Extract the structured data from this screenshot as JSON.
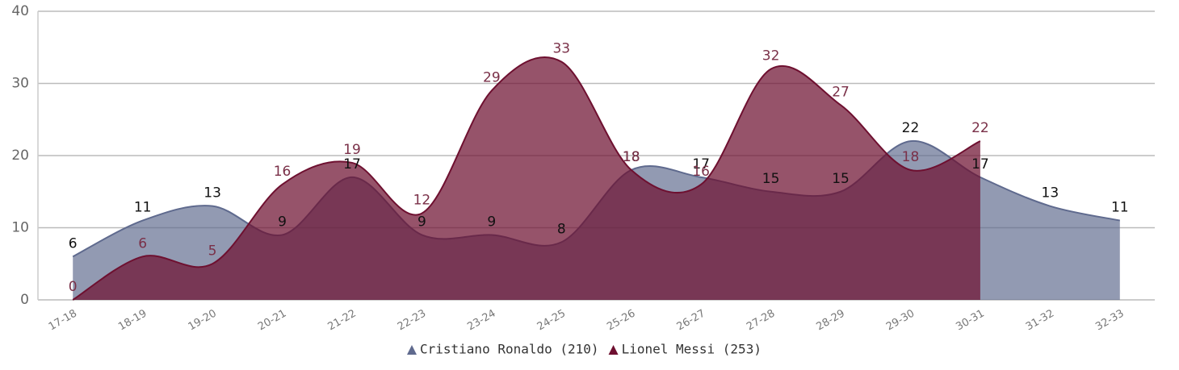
{
  "chart_data": {
    "type": "areaspline",
    "categories": [
      "17-18",
      "18-19",
      "19-20",
      "20-21",
      "21-22",
      "22-23",
      "23-24",
      "24-25",
      "25-26",
      "26-27",
      "27-28",
      "28-29",
      "29-30",
      "30-31",
      "31-32",
      "32-33"
    ],
    "series": [
      {
        "name": "Cristiano Ronaldo (210)",
        "color": "#5f6a8e",
        "label_color": "#111111",
        "values": [
          6,
          11,
          13,
          9,
          17,
          9,
          9,
          8,
          18,
          17,
          15,
          15,
          22,
          17,
          13,
          11
        ]
      },
      {
        "name": "Lionel Messi (253)",
        "color": "#6e1030",
        "label_color": "#7a3048",
        "values": [
          0,
          6,
          5,
          16,
          19,
          12,
          29,
          33,
          18,
          16,
          32,
          27,
          18,
          22,
          null,
          null
        ]
      }
    ],
    "ylim": [
      0,
      40
    ],
    "yticks": [
      0,
      10,
      20,
      30,
      40
    ],
    "grid": true,
    "legend": "bottom"
  }
}
